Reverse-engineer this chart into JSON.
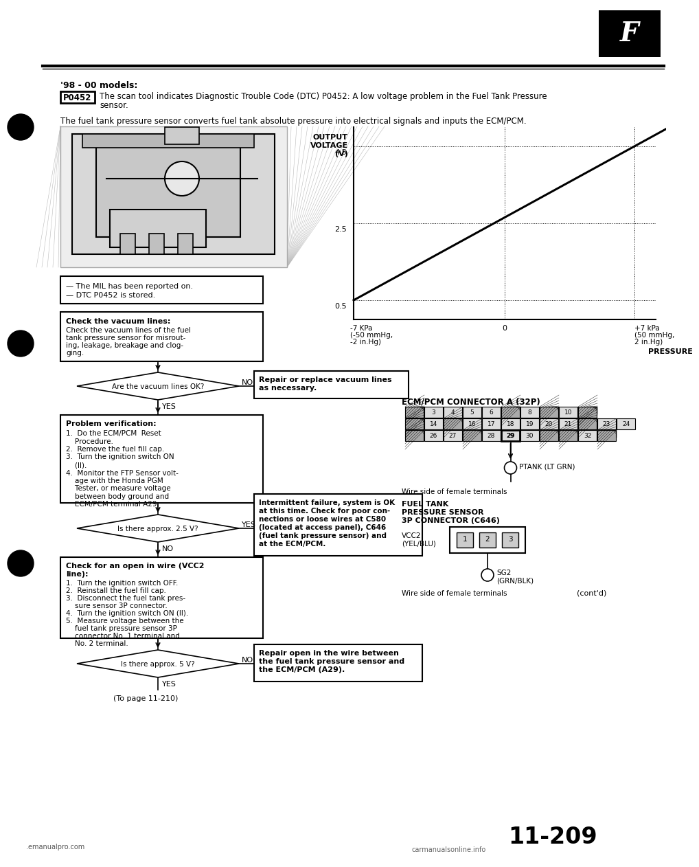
{
  "page_title": "'98 - 00 models:",
  "dtc_code": "P0452",
  "dtc_text_line1": "The scan tool indicates Diagnostic Trouble Code (DTC) P0452: A low voltage problem in the Fuel Tank Pressure",
  "dtc_text_line2": "sensor.",
  "intro_text": "The fuel tank pressure sensor converts fuel tank absolute pressure into electrical signals and inputs the ECM/PCM.",
  "graph": {
    "ylabel_line1": "OUTPUT",
    "ylabel_line2": "VOLTAGE",
    "ylabel_line3": "(V)",
    "yticks": [
      0.5,
      2.5,
      4.5
    ],
    "xlabel": "PRESSURE",
    "xtick_left_line1": "-7 KPa",
    "xtick_left_line2": "(-50 mmHg,",
    "xtick_left_line3": "-2 in.Hg)",
    "xtick_center": "0",
    "xtick_right_line1": "+7 kPa",
    "xtick_right_line2": "(50 mmHg,",
    "xtick_right_line3": "2 in.Hg)"
  },
  "mil_line1": "— The MIL has been reported on.",
  "mil_line2": "— DTC P0452 is stored.",
  "vacuum_title": "Check the vacuum lines:",
  "vacuum_body_line1": "Check the vacuum lines of the fuel",
  "vacuum_body_line2": "tank pressure sensor for misrout-",
  "vacuum_body_line3": "ing, leakage, breakage and clog-",
  "vacuum_body_line4": "ging.",
  "diamond1_text": "Are the vacuum lines OK?",
  "no_label": "NO",
  "yes_label": "YES",
  "repair1_line1": "Repair or replace vacuum lines",
  "repair1_line2": "as necessary.",
  "prob_title": "Problem verification:",
  "prob_line1": "1.  Do the ECM/PCM  Reset",
  "prob_line2": "    Procedure.",
  "prob_line3": "2.  Remove the fuel fill cap.",
  "prob_line4": "3.  Turn the ignition switch ON",
  "prob_line5": "    (II).",
  "prob_line6": "4.  Monitor the FTP Sensor volt-",
  "prob_line7": "    age with the Honda PGM",
  "prob_line8": "    Tester, or measure voltage",
  "prob_line9": "    between body ground and",
  "prob_line10": "    ECM/PCM terminal A29.",
  "diamond2_text": "Is there approx. 2.5 V?",
  "yes2_label": "YES",
  "no2_label": "NO",
  "intermit_line1": "Intermittent failure, system is OK",
  "intermit_line2": "at this time. Check for poor con-",
  "intermit_line3": "nections or loose wires at C580",
  "intermit_line4": "(located at access panel), C646",
  "intermit_line5": "(fuel tank pressure sensor) and",
  "intermit_line6": "at the ECM/PCM.",
  "open_title1": "Check for an open in wire (VCC2",
  "open_title2": "line):",
  "open_line1": "1.  Turn the ignition switch OFF.",
  "open_line2": "2.  Reinstall the fuel fill cap.",
  "open_line3": "3.  Disconnect the fuel tank pres-",
  "open_line4": "    sure sensor 3P connector.",
  "open_line5": "4.  Turn the ignition switch ON (II).",
  "open_line6": "5.  Measure voltage between the",
  "open_line7": "    fuel tank pressure sensor 3P",
  "open_line8": "    connector No. 1 terminal and",
  "open_line9": "    No. 2 terminal.",
  "diamond3_text": "Is there approx. 5 V?",
  "no3_label": "NO",
  "yes3_label": "YES",
  "repair2_line1": "Repair open in the wire between",
  "repair2_line2": "the fuel tank pressure sensor and",
  "repair2_line3": "the ECM/PCM (A29).",
  "to_page": "(To page 11-210)",
  "ecm_title": "ECM/PCM CONNECTOR A (32P)",
  "ptank_label": "PTANK (LT GRN)",
  "wire_text1": "Wire side of female terminals",
  "ftp_title1": "FUEL TANK",
  "ftp_title2": "PRESSURE SENSOR",
  "ftp_title3": "3P CONNECTOR (C646)",
  "vcc2_line1": "VCC2",
  "vcc2_line2": "(YEL/BLU)",
  "sg2_line1": "SG2",
  "sg2_line2": "(GRN/BLK)",
  "wire_text2": "Wire side of female terminals",
  "contd": "(cont'd)",
  "page_number": "11-209",
  "footer_left": ".emanualpro.com",
  "footer_right": "carmanualsonline.info",
  "bg_color": "#ffffff",
  "text_color": "#000000"
}
